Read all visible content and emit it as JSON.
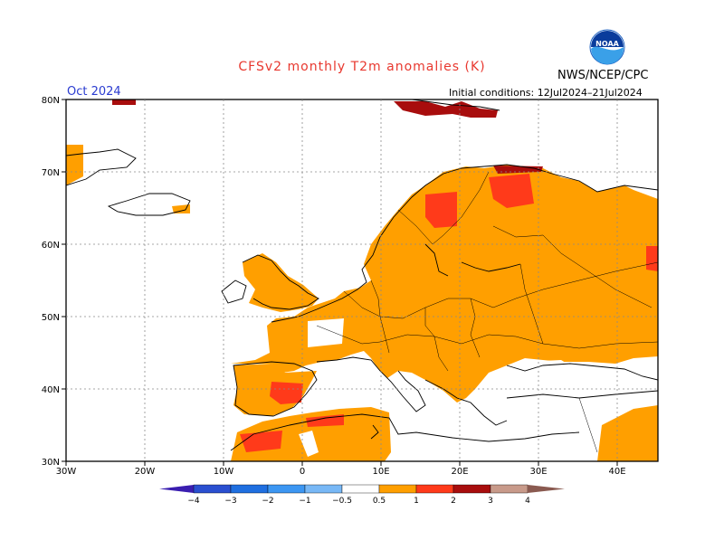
{
  "title": "CFSv2 monthly T2m anomalies (K)",
  "agency": "NWS/NCEP/CPC",
  "logo_text": "NOAA",
  "period": "Oct 2024",
  "initial_conditions": "Initial conditions: 12Jul2024–21Jul2024",
  "lat_labels": [
    "80N",
    "70N",
    "60N",
    "50N",
    "40N",
    "30N"
  ],
  "lon_labels": [
    "30W",
    "20W",
    "10W",
    "0",
    "10E",
    "20E",
    "30E",
    "40E"
  ],
  "colorbar": {
    "tick_labels": [
      "−4",
      "−3",
      "−2",
      "−1",
      "−0.5",
      "0.5",
      "1",
      "2",
      "3",
      "4"
    ],
    "colors": [
      "#3a1eb0",
      "#2a4fd0",
      "#1f6fe0",
      "#3c96f2",
      "#78b8f6",
      "#ffffff",
      "#ff9f00",
      "#ff3a1a",
      "#a80d0d",
      "#c89a8a",
      "#8a5a50"
    ]
  },
  "anomaly_colors": {
    "0.5-1": "#ff9f00",
    "1-2": "#ff3a1a",
    "2-3": "#a80d0d"
  }
}
